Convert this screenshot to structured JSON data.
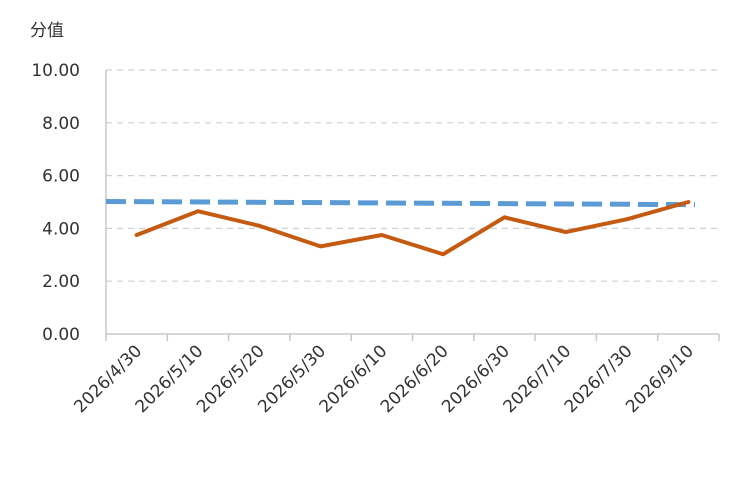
{
  "chart_data": {
    "type": "line",
    "ylabel": "分值",
    "ylim": [
      0,
      10
    ],
    "yticks": [
      "0.00",
      "2.00",
      "4.00",
      "6.00",
      "8.00",
      "10.00"
    ],
    "categories": [
      "2026/4/30",
      "2026/5/10",
      "2026/5/20",
      "2026/5/30",
      "2026/6/10",
      "2026/6/20",
      "2026/6/30",
      "2026/7/10",
      "2026/7/30",
      "2026/9/10"
    ],
    "grid": true,
    "series": [
      {
        "color": "#5b9bd5",
        "style": "dashed",
        "values": [
          5.02,
          5.0,
          4.98,
          4.97,
          4.96,
          4.95,
          4.94,
          4.92,
          4.91,
          4.9
        ]
      },
      {
        "color": "#c55a11",
        "style": "solid",
        "values": [
          3.75,
          4.65,
          4.1,
          3.32,
          3.75,
          3.02,
          4.42,
          3.86,
          4.35,
          5.0
        ]
      }
    ]
  }
}
